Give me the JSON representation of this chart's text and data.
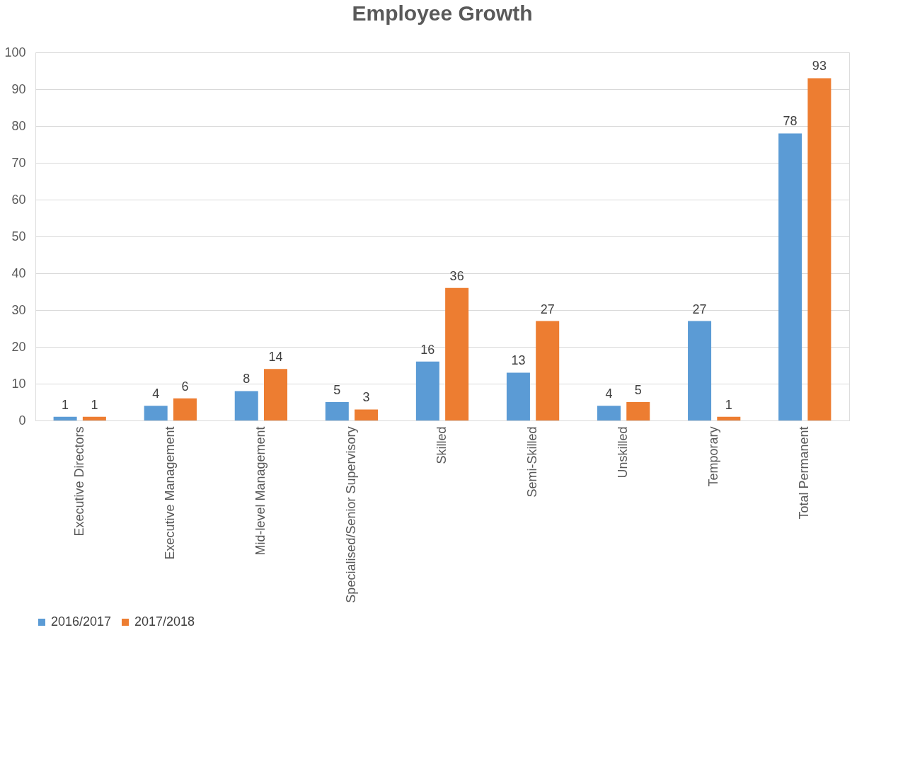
{
  "chart_data": {
    "type": "bar",
    "title": "Employee Growth",
    "categories": [
      "Executive Directors",
      "Executive Management",
      "Mid-level Management",
      "Specialised/Senior Supervisory",
      "Skilled",
      "Semi-Skilled",
      "Unskilled",
      "Temporary",
      "Total Permanent"
    ],
    "series": [
      {
        "name": "2016/2017",
        "color": "#5b9bd5",
        "values": [
          1,
          4,
          8,
          5,
          16,
          13,
          4,
          27,
          78
        ]
      },
      {
        "name": "2017/2018",
        "color": "#ed7d31",
        "values": [
          1,
          6,
          14,
          3,
          36,
          27,
          5,
          1,
          93
        ]
      }
    ],
    "ylim": [
      0,
      100
    ],
    "yticks": [
      0,
      10,
      20,
      30,
      40,
      50,
      60,
      70,
      80,
      90,
      100
    ],
    "grid": "y",
    "legend": "bottom",
    "data_labels": true
  }
}
